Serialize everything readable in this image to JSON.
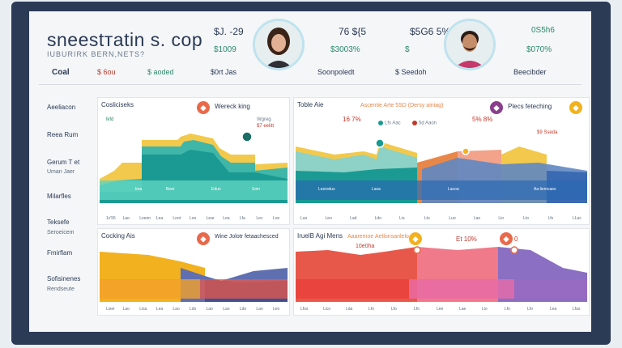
{
  "header": {
    "title": "snеestтatin s. cop",
    "subtitle": "IUBURIRK BERN,NETS?",
    "values": [
      "$J. -29",
      "$1009",
      "76 ${5",
      "$3003%",
      "$5G6 5%",
      "$",
      "0S5h6",
      "$070%"
    ]
  },
  "nav": [
    "Coal",
    "$ 6ou",
    "$ aoded",
    "$0rt Jas",
    "Soonpoledt",
    "$ Seedoh",
    "Beecibder"
  ],
  "sidebar": [
    "Aeeliacon",
    "Reea Rum",
    "Gerum T et",
    "Uman Jaer",
    "Milarfles",
    "Teksefe",
    "Seroeicem",
    "Fmirflam",
    "Sofisinenes",
    "Rendseute"
  ],
  "panels": [
    {
      "title": "Cosliciseks",
      "badge_title": "Wereck king",
      "legend": [
        "lkfd",
        "Wgreg",
        "$7 eelitt"
      ],
      "badge_color": "#e86a4a",
      "ticks": [
        "1c'55",
        "Lao",
        "Leeon",
        "Lea",
        "Loot",
        "Loo",
        "Lear",
        "Lea",
        "Lfa",
        "Lec",
        "Loo"
      ],
      "band_label": [
        "tma",
        "Beer",
        "Edun",
        "Soin"
      ]
    },
    {
      "title": "Toble Aie",
      "badge_title": "Plecs feteching",
      "header_text": "Ascentie Arte 5SD (Dersy ainiag)",
      "values": [
        "16 7%",
        "Lfs Aac",
        "5d Aaon",
        "5% 8%",
        "$9 Sseda"
      ],
      "badge_color": "#8a3f8c",
      "badge2_color": "#f2b11e",
      "ticks": [
        "Luo",
        "Leo",
        "Lad",
        "Ldo",
        "Lis",
        "Lto",
        "Luo",
        "Lao",
        "Lio",
        "Lto",
        "Lfs",
        "LLac"
      ],
      "band_label": [
        "Lesrodus",
        "Laxa",
        "Lacoa",
        "Aa tiemcaes"
      ]
    },
    {
      "title": "Cocking Ais",
      "badge_title": "Wine Jolotr fetaachesced",
      "badge_color": "#e86a4a",
      "ticks": [
        "Liser",
        "Lao",
        "Lisa",
        "Lea",
        "Lao",
        "Ldo",
        "Lao",
        "Lao",
        "Ldo",
        "Lao",
        "Leo"
      ]
    },
    {
      "title": "IruelB Agi Mens",
      "header_text": "Aaaremoe Aetlonsanlelo",
      "values": [
        "10e0ha",
        "Et 10%",
        "0"
      ],
      "badge_color": "#f2b11e",
      "badge2_color": "#e86a4a",
      "ticks": [
        "Lfos",
        "Lico",
        "Lda",
        "Lfo",
        "Lfo",
        "Lfo",
        "Lee",
        "Lae",
        "Lio",
        "Lfo",
        "Lfo",
        "Lea",
        "Lfas"
      ]
    }
  ]
}
